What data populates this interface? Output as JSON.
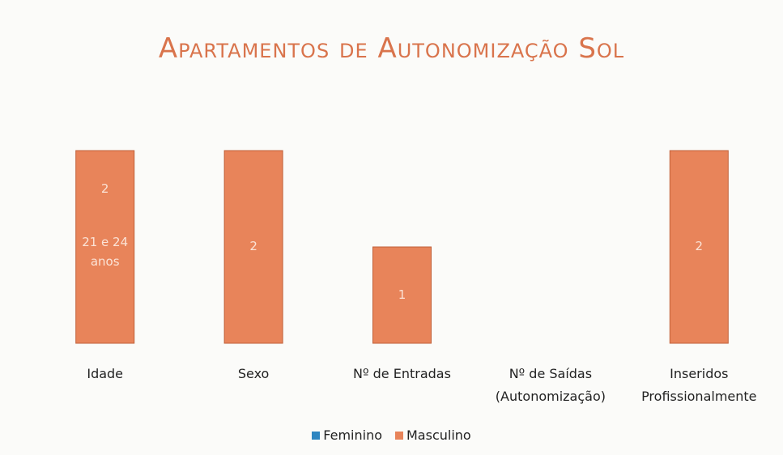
{
  "chart_data": {
    "type": "bar",
    "title": "Apartamentos de Autonomização Sol",
    "categories": [
      "Idade",
      "Sexo",
      "Nº de Entradas",
      "Nº de Saídas (Autonomização)",
      "Inseridos Profissionalmente"
    ],
    "series": [
      {
        "name": "Feminino",
        "color": "#2e86c1",
        "values": [
          0,
          0,
          0,
          0,
          0
        ]
      },
      {
        "name": "Masculino",
        "color": "#e8845a",
        "values": [
          2,
          2,
          1,
          null,
          2
        ]
      }
    ],
    "annotations": [
      {
        "text": "21 e 24 anos",
        "category": "Idade"
      }
    ],
    "ylim": [
      0,
      2
    ],
    "stacked": true,
    "legend": "bottom"
  }
}
